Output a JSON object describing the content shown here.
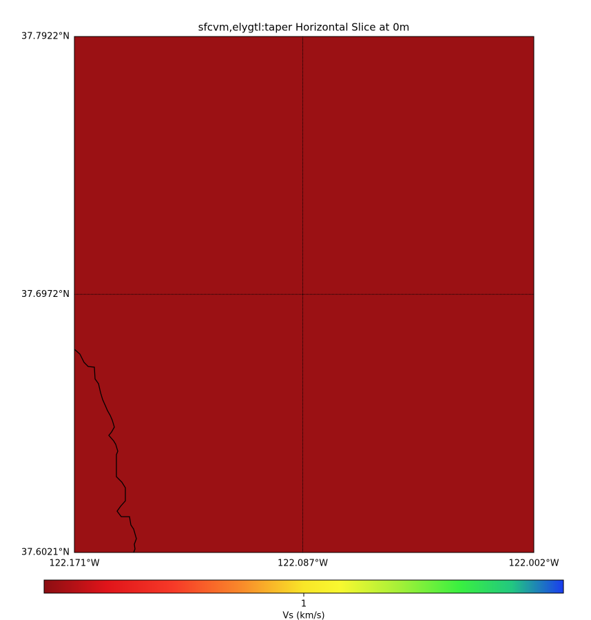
{
  "map": {
    "title": "sfcvm,elygtl:taper Horizontal Slice at 0m",
    "fill_color": "#9b1114",
    "xlim": [
      -122.171,
      -122.002
    ],
    "ylim": [
      37.6021,
      37.7922
    ],
    "xticks": [
      {
        "value": -122.171,
        "label": "122.171°W"
      },
      {
        "value": -122.087,
        "label": "122.087°W"
      },
      {
        "value": -122.002,
        "label": "122.002°W"
      }
    ],
    "yticks": [
      {
        "value": 37.6021,
        "label": "37.6021°N"
      },
      {
        "value": 37.6972,
        "label": "37.6972°N"
      },
      {
        "value": 37.7922,
        "label": "37.7922°N"
      }
    ],
    "colorbar": {
      "label": "Vs (km/s)",
      "lim": [
        0,
        2
      ],
      "ticks": [
        1
      ]
    }
  }
}
